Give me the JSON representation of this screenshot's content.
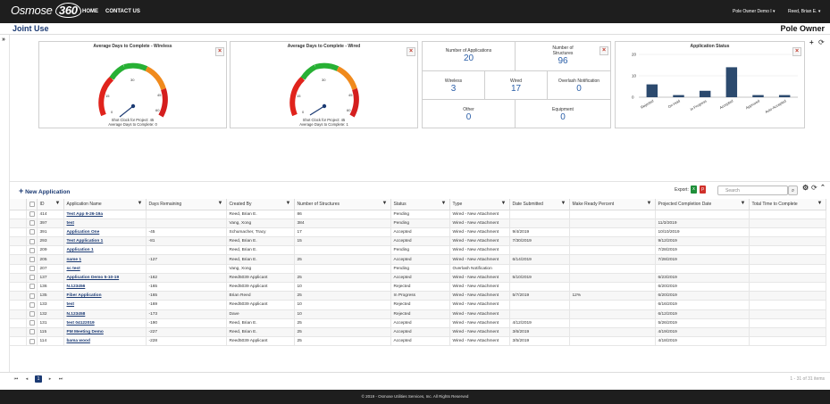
{
  "header": {
    "logo_word": "Osmose",
    "logo_number": "360",
    "nav": [
      "HOME",
      "CONTACT US"
    ],
    "user_org": "Pole Owner Demo I",
    "user_name": "Reed, Brian E."
  },
  "subheader": {
    "title": "Joint Use",
    "role": "Pole Owner"
  },
  "gauges": [
    {
      "title": "Average Days to Complete - Wireless",
      "ticks": [
        "0",
        "15",
        "30",
        "45",
        "60"
      ],
      "caption1": "Shot Clock for Project: 45",
      "caption2": "Average Days to Complete: 0",
      "value": 0
    },
    {
      "title": "Average Days to Complete - Wired",
      "ticks": [
        "0",
        "15",
        "30",
        "45",
        "60"
      ],
      "caption1": "Shot Clock for Project: 45",
      "caption2": "Average Days to Complete: 1",
      "value": 1
    }
  ],
  "stats": {
    "applications": {
      "label": "Number of Applications",
      "value": "20"
    },
    "structures": {
      "label": "Number of Structures",
      "value": "96"
    },
    "wireless": {
      "label": "Wireless",
      "value": "3"
    },
    "wired": {
      "label": "Wired",
      "value": "17"
    },
    "overlash": {
      "label": "Overlash Notification",
      "value": "0"
    },
    "other": {
      "label": "Other",
      "value": "0"
    },
    "equipment": {
      "label": "Equipment",
      "value": "0"
    }
  },
  "chart_data": {
    "type": "bar",
    "title": "Application Status",
    "categories": [
      "Rejected",
      "On Hold",
      "In Progress",
      "Accepted",
      "Approved",
      "Auto-Accepted"
    ],
    "values": [
      6,
      1,
      3,
      14,
      1,
      1
    ],
    "ylim": [
      0,
      20
    ],
    "yticks": [
      "0",
      "10",
      "20"
    ],
    "grid": true,
    "color": "#2c4a6e"
  },
  "grid": {
    "new_label": "New Application",
    "export_label": "Export:",
    "search_placeholder": "Search",
    "columns": [
      "ID",
      "Application Name",
      "Days Remaining",
      "Created By",
      "Number of Structures",
      "Status",
      "Type",
      "Date Submitted",
      "Make Ready Percent",
      "Projected Completion Date",
      "Total Time to Complete"
    ],
    "rows": [
      [
        "414",
        "Test App 9-26-19a",
        "",
        "Reed, Brian E.",
        "86",
        "Pending",
        "Wired - New Attachment",
        "",
        "",
        "",
        ""
      ],
      [
        "397",
        "test",
        "",
        "Vang, Xong",
        "384",
        "Pending",
        "Wired - New Attachment",
        "",
        "",
        "11/3/2019",
        ""
      ],
      [
        "391",
        "Application One",
        "-45",
        "Schumacher, Tracy",
        "17",
        "Accepted",
        "Wired - New Attachment",
        "9/4/2019",
        "",
        "10/10/2019",
        ""
      ],
      [
        "293",
        "Test Application 1",
        "-81",
        "Reed, Brian E.",
        "15",
        "Accepted",
        "Wired - New Attachment",
        "7/30/2019",
        "",
        "9/12/2019",
        ""
      ],
      [
        "209",
        "Application 1",
        "",
        "Reed, Brian E.",
        "",
        "Pending",
        "Wired - New Attachment",
        "",
        "",
        "7/28/2019",
        ""
      ],
      [
        "205",
        "name 1",
        "-127",
        "Reed, Brian E.",
        "25",
        "Accepted",
        "Wired - New Attachment",
        "6/14/2019",
        "",
        "7/28/2019",
        ""
      ],
      [
        "207",
        "sc test",
        "",
        "Vang, Xong",
        "",
        "Pending",
        "Overlash Notification",
        "",
        "",
        "",
        ""
      ],
      [
        "137",
        "Application Demo 5-10-19",
        "-162",
        "Reed5039 Applicant",
        "25",
        "Accepted",
        "Wired - New Attachment",
        "5/10/2019",
        "",
        "6/23/2019",
        ""
      ],
      [
        "136",
        "N.123456",
        "-165",
        "Reed5039 Applicant",
        "10",
        "Rejected",
        "Wired - New Attachment",
        "",
        "",
        "6/20/2019",
        ""
      ],
      [
        "135",
        "Fiber Application",
        "-165",
        "Brian Reed",
        "25",
        "In Progress",
        "Wired - New Attachment",
        "5/7/2019",
        "12%",
        "6/20/2019",
        ""
      ],
      [
        "133",
        "test",
        "-169",
        "Reed5039 Applicant",
        "10",
        "Rejected",
        "Wired - New Attachment",
        "",
        "",
        "6/16/2019",
        ""
      ],
      [
        "132",
        "N.123458",
        "-173",
        "Dave",
        "10",
        "Rejected",
        "Wired - New Attachment",
        "",
        "",
        "6/12/2019",
        ""
      ],
      [
        "131",
        "test 04122019",
        "-190",
        "Reed, Brian E.",
        "25",
        "Accepted",
        "Wired - New Attachment",
        "4/12/2019",
        "",
        "5/26/2019",
        ""
      ],
      [
        "115",
        "PM Meeting Demo",
        "-227",
        "Reed, Brian E.",
        "25",
        "Accepted",
        "Wired - New Attachment",
        "3/6/2019",
        "",
        "4/19/2019",
        ""
      ],
      [
        "114",
        "bama wood",
        "-228",
        "Reed5039 Applicant",
        "25",
        "Accepted",
        "Wired - New Attachment",
        "3/5/2019",
        "",
        "4/18/2019",
        ""
      ]
    ],
    "pager": {
      "current": "1",
      "info": "1 - 31 of 31 items"
    }
  },
  "footer": "© 2019 - Osmose Utilities Services, Inc. All Rights Reserved"
}
